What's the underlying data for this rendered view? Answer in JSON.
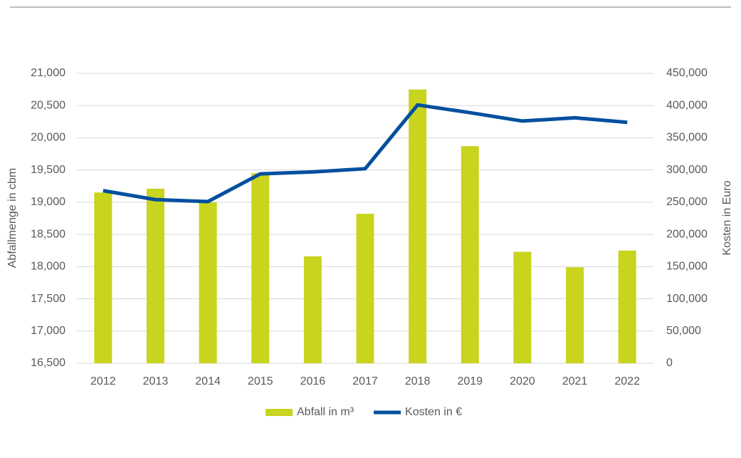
{
  "chart_data": {
    "type": "bar_line",
    "categories": [
      "2012",
      "2013",
      "2014",
      "2015",
      "2016",
      "2017",
      "2018",
      "2019",
      "2020",
      "2021",
      "2022"
    ],
    "series": [
      {
        "name": "Abfall in m³",
        "color": "#c8d41e",
        "type": "bar",
        "axis": "y",
        "values": [
          19150,
          19210,
          19000,
          19450,
          18160,
          18820,
          20750,
          19870,
          18230,
          17990,
          18250
        ]
      },
      {
        "name": "Kosten in €",
        "color": "#004f9f",
        "type": "line",
        "axis": "y2",
        "values": [
          268000,
          254000,
          251000,
          294000,
          297000,
          302000,
          401000,
          389000,
          376000,
          381000,
          374000
        ]
      }
    ],
    "ylabel": "Abfallmenge in cbm",
    "y2label": "Kosten in Euro",
    "ylim": [
      16500,
      21000
    ],
    "yticks": [
      {
        "value": 16500,
        "label": "16,500"
      },
      {
        "value": 17000,
        "label": "17,000"
      },
      {
        "value": 17500,
        "label": "17,500"
      },
      {
        "value": 18000,
        "label": "18,000"
      },
      {
        "value": 18500,
        "label": "18,500"
      },
      {
        "value": 19000,
        "label": "19,000"
      },
      {
        "value": 19500,
        "label": "19,500"
      },
      {
        "value": 20000,
        "label": "20,000"
      },
      {
        "value": 20500,
        "label": "20,500"
      },
      {
        "value": 21000,
        "label": "21,000"
      }
    ],
    "y2lim": [
      0,
      450000
    ],
    "y2ticks": [
      0,
      {
        "value": 50000,
        "label": "50,000"
      },
      {
        "value": 100000,
        "label": "100,000"
      },
      {
        "value": 150000,
        "label": "150,000"
      },
      {
        "value": 200000,
        "label": "200,000"
      },
      {
        "value": 250000,
        "label": "250,000"
      },
      {
        "value": 300000,
        "label": "300,000"
      },
      {
        "value": 350000,
        "label": "350,000"
      },
      {
        "value": 400000,
        "label": "400,000"
      },
      {
        "value": 450000,
        "label": "450,000"
      }
    ],
    "grid": true,
    "legend": "bottom"
  }
}
